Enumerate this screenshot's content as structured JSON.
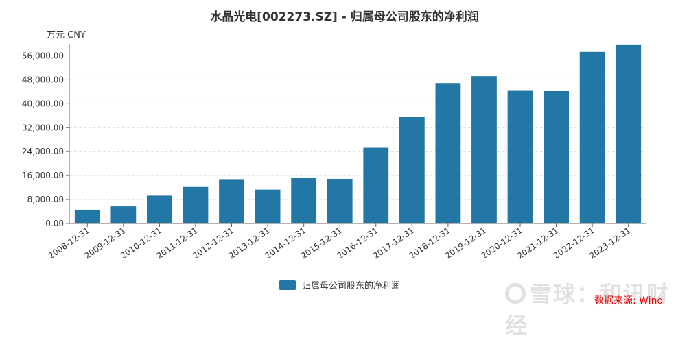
{
  "chart_data": {
    "type": "bar",
    "title": "水晶光电[002273.SZ] - 归属母公司股东的净利润",
    "unit_label": "万元  CNY",
    "categories": [
      "2008-12-31",
      "2009-12-31",
      "2010-12-31",
      "2011-12-31",
      "2012-12-31",
      "2013-12-31",
      "2014-12-31",
      "2015-12-31",
      "2016-12-31",
      "2017-12-31",
      "2018-12-31",
      "2019-12-31",
      "2020-12-31",
      "2021-12-31",
      "2022-12-31",
      "2023-12-31"
    ],
    "series": [
      {
        "name": "归属母公司股东的净利润",
        "values": [
          4600,
          5700,
          9300,
          12200,
          14800,
          11300,
          15300,
          14900,
          25300,
          35700,
          46900,
          49200,
          44300,
          44200,
          57300,
          59800
        ]
      }
    ],
    "ylim": [
      0,
      60000
    ],
    "yticks": [
      0,
      8000,
      16000,
      24000,
      32000,
      40000,
      48000,
      56000
    ],
    "ytick_labels": [
      "0.00",
      "8,000.00",
      "16,000.00",
      "24,000.00",
      "32,000.00",
      "40,000.00",
      "48,000.00",
      "56,000.00"
    ],
    "grid": true,
    "legend_position": "bottom",
    "bar_color": "#2377a4"
  },
  "watermark": "雪球：和讯财经",
  "source": "数据来源: Wind"
}
